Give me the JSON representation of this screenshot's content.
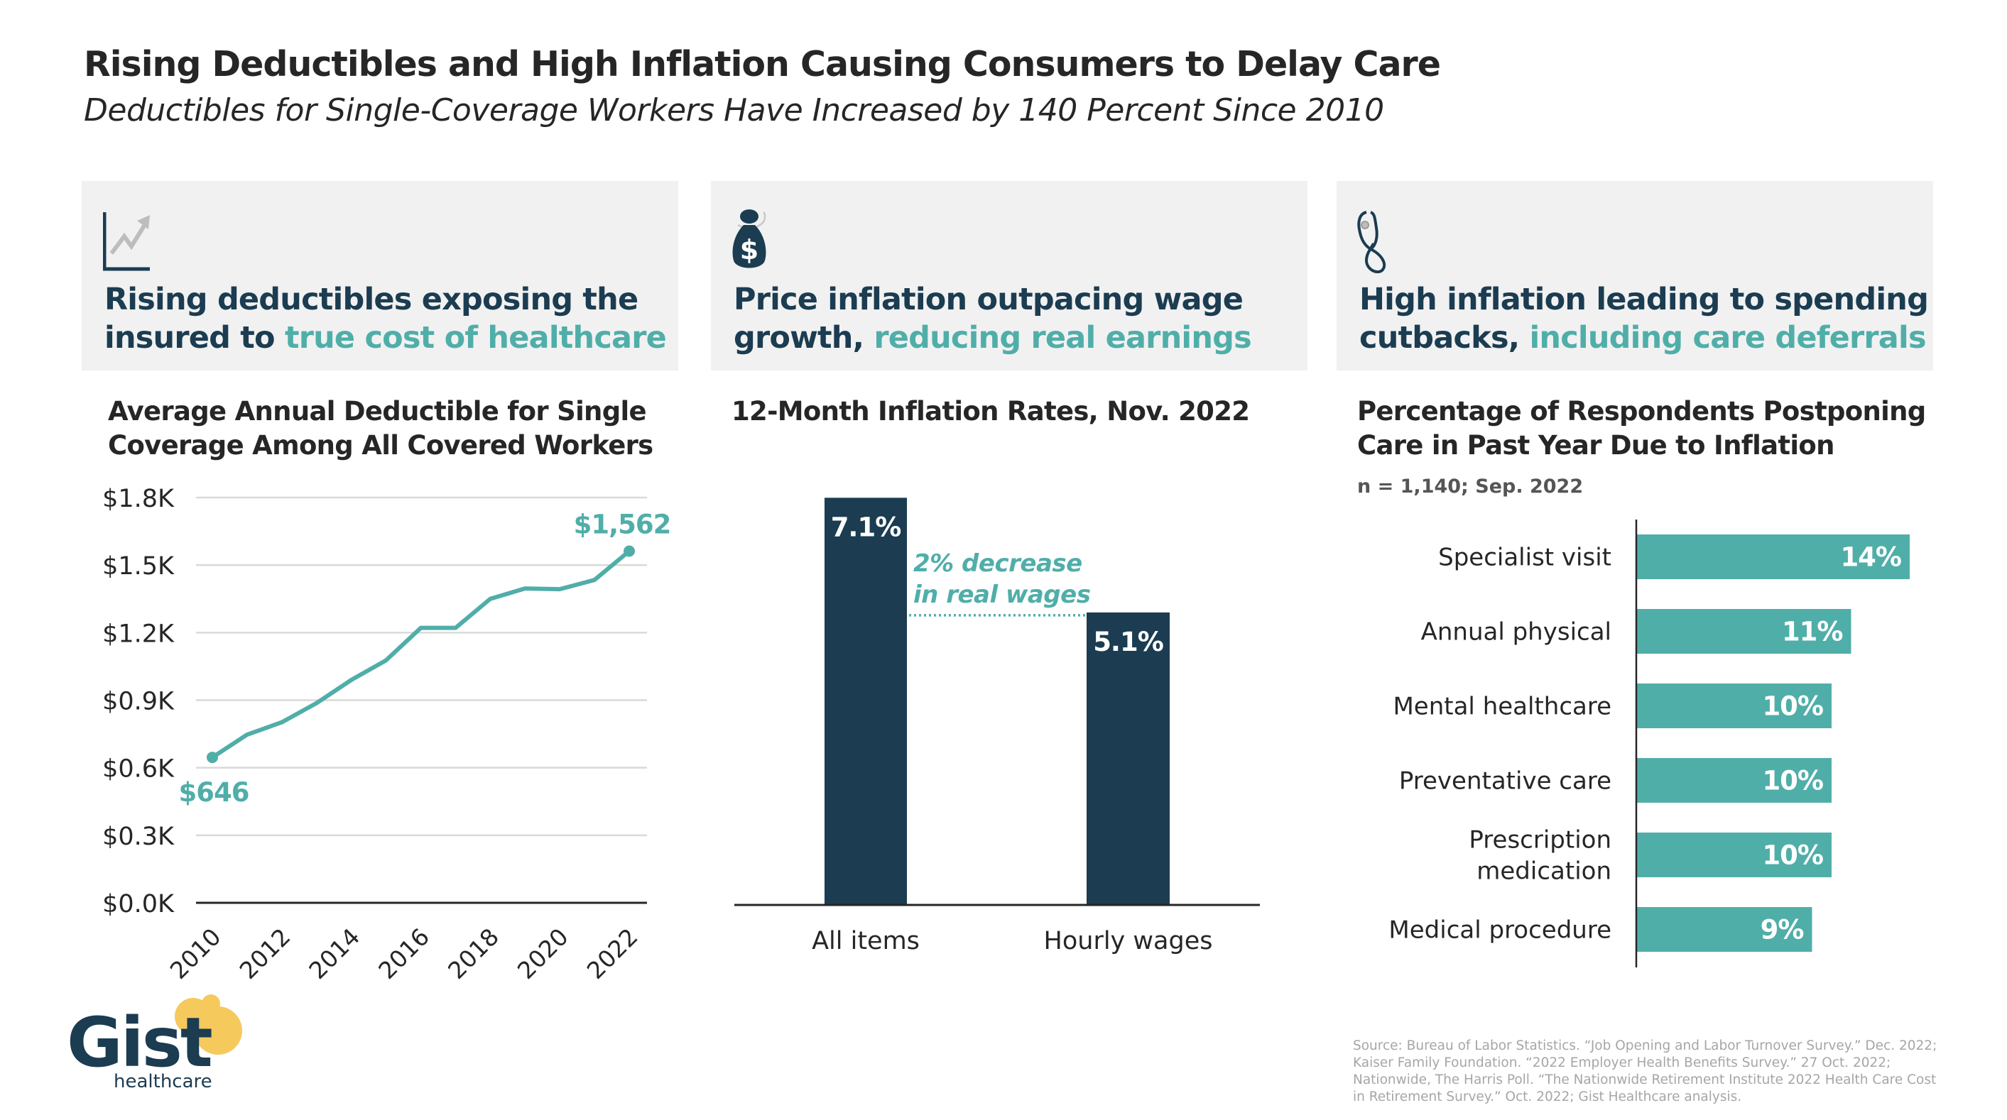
{
  "header": {
    "title": "Rising Deductibles and High Inflation Causing Consumers to Delay Care",
    "subtitle": "Deductibles for Single-Coverage Workers Have Increased by 140 Percent Since 2010"
  },
  "panels": [
    {
      "icon": "trend-chart-icon",
      "headline_line1": "Rising deductibles exposing the",
      "headline_line2_dark": "insured to ",
      "headline_line2_accent": "true cost of healthcare"
    },
    {
      "icon": "money-bag-icon",
      "headline_line1": "Price inflation outpacing wage",
      "headline_line2_dark": "growth, ",
      "headline_line2_accent": "reducing real earnings"
    },
    {
      "icon": "stethoscope-icon",
      "headline_line1": "High inflation leading to spending",
      "headline_line2_dark": "cutbacks, ",
      "headline_line2_accent": "including care deferrals"
    }
  ],
  "colors": {
    "navy": "#1b3c51",
    "teal": "#50aea9",
    "panel_bg": "#f1f1f1",
    "gridline": "#d9d9d9",
    "text": "#262626",
    "logo_yellow": "#f5c95c",
    "source_gray": "#a6a6a6"
  },
  "chart_data": [
    {
      "type": "line",
      "title_line1": "Average Annual Deductible for Single",
      "title_line2": "Coverage Among All Covered Workers",
      "xlabel": "",
      "ylabel": "",
      "x": [
        2010,
        2011,
        2012,
        2013,
        2014,
        2015,
        2016,
        2017,
        2018,
        2019,
        2020,
        2021,
        2022
      ],
      "series": [
        {
          "name": "Average annual deductible (single coverage)",
          "values": [
            646,
            747,
            802,
            887,
            990,
            1077,
            1221,
            1221,
            1350,
            1396,
            1393,
            1434,
            1562
          ]
        }
      ],
      "ylim": [
        0,
        1800
      ],
      "yticks": [
        0,
        300,
        600,
        900,
        1200,
        1500,
        1800
      ],
      "ytick_labels": [
        "$0.0K",
        "$0.3K",
        "$0.6K",
        "$0.9K",
        "$1.2K",
        "$1.5K",
        "$1.8K"
      ],
      "xtick_labels": [
        "2010",
        "2012",
        "2014",
        "2016",
        "2018",
        "2020",
        "2022"
      ],
      "xticks": [
        2010,
        2012,
        2014,
        2016,
        2018,
        2020,
        2022
      ],
      "annotations": [
        {
          "x": 2010,
          "label": "$646"
        },
        {
          "x": 2022,
          "label": "$1,562"
        }
      ],
      "grid": true,
      "legend": "none"
    },
    {
      "type": "bar",
      "title": "12-Month Inflation Rates, Nov. 2022",
      "categories": [
        "All items",
        "Hourly wages"
      ],
      "values": [
        7.1,
        5.1
      ],
      "value_labels": [
        "7.1%",
        "5.1%"
      ],
      "unit": "%",
      "annotation_line1": "2% decrease",
      "annotation_line2": "in real wages",
      "ylim": [
        0,
        7.1
      ],
      "grid": false,
      "legend": "none"
    },
    {
      "type": "bar",
      "orientation": "horizontal",
      "title_line1": "Percentage of Respondents Postponing",
      "title_line2": "Care in Past Year Due to Inflation",
      "note": "n = 1,140; Sep. 2022",
      "categories": [
        "Specialist visit",
        "Annual physical",
        "Mental healthcare",
        "Preventative care",
        "Prescription medication",
        "Medical procedure"
      ],
      "category_lines": [
        [
          "Specialist visit"
        ],
        [
          "Annual physical"
        ],
        [
          "Mental healthcare"
        ],
        [
          "Preventative care"
        ],
        [
          "Prescription",
          "medication"
        ],
        [
          "Medical procedure"
        ]
      ],
      "values": [
        14,
        11,
        10,
        10,
        10,
        9
      ],
      "value_labels": [
        "14%",
        "11%",
        "10%",
        "10%",
        "10%",
        "9%"
      ],
      "unit": "%",
      "xlim": [
        0,
        14
      ],
      "grid": false,
      "legend": "none"
    }
  ],
  "footer": {
    "logo_word": "Gist",
    "logo_sub": "healthcare",
    "source": "Source: Bureau of Labor Statistics. “Job Opening and Labor Turnover Survey.” Dec. 2022; Kaiser Family Foundation. “2022 Employer Health Benefits Survey.” 27 Oct. 2022; Nationwide, The Harris Poll. “The Nationwide Retirement Institute 2022 Health Care Cost in Retirement Survey.” Oct. 2022; Gist Healthcare analysis."
  }
}
